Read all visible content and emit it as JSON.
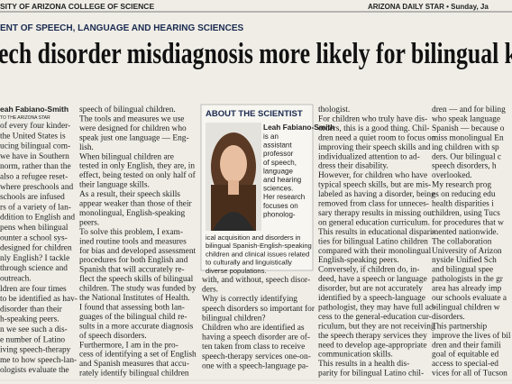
{
  "header": {
    "left": "SITY OF ARIZONA COLLEGE OF SCIENCE",
    "right": "ARIZONA DAILY STAR • Sunday, Ja"
  },
  "section": "ENT OF SPEECH, LANGUAGE AND HEARING SCIENCES",
  "headline": "ech disorder misdiagnosis more likely for bilingual k",
  "byline": {
    "name": "eah Fabiano-Smith",
    "credit": "TO THE ARIZONA STAR"
  },
  "columns": [
    [
      "of every four kinder-",
      "the United States is",
      "ucing bilingual com-",
      "we have in Southern",
      "norm, rather than the",
      "also a refugee reset-",
      "where preschools and",
      "schools are infused",
      "rs of a variety of lan-",
      "ddition to English and",
      "pens when bilingual",
      "ounter a school sys-",
      "designed for children",
      "nly English? I tackle",
      "through science and",
      "outreach.",
      "ldren are four times",
      "to be identified as hav-",
      "disorder than their",
      "h-speaking peers.",
      "n we see such a dis-",
      "e number of Latino",
      "iving speech-therapy",
      "me to how speech-lan-",
      "ologists evaluate the"
    ],
    [
      "speech of bilingual children.",
      "The tools and measures we use",
      "were designed for children who",
      "speak just one language — Eng-",
      "lish.",
      "When bilingual children are",
      "tested in only English, they are, in",
      "effect, being tested on only half of",
      "their language skills.",
      "As a result, their speech skills",
      "appear weaker than those of their",
      "monolingual, English-speaking",
      "peers.",
      "To solve this problem, I exam-",
      "ined routine tools and measures",
      "for bias and developed assessment",
      "procedures for both English and",
      "Spanish that will accurately re-",
      "flect the speech skills of bilingual",
      "children. The study was funded by",
      "the National Institutes of Health.",
      "I found that assessing both lan-",
      "guages of the bilingual child re-",
      "sults in a more accurate diagnosis",
      "of speech disorders.",
      "Furthermore, I am in the pro-",
      "cess of identifying a set of English",
      "and Spanish measures that accu-",
      "rately identify bilingual children"
    ],
    [
      "with, and without, speech disor-",
      "ders.",
      "Why is correctly identifying",
      "speech disorders so important for",
      "bilingual children?",
      "Children who are identified as",
      "having a speech disorder are of-",
      "ten taken from class to receive",
      "speech-therapy services one-on-",
      "one with a speech-language pa-"
    ],
    [
      "thologist.",
      "For children who truly have dis-",
      "orders, this is a good thing. Chil-",
      "dren need a quiet room to focus on",
      "improving their speech skills and",
      "individualized attention to ad-",
      "dress their disability.",
      "However, for children who have",
      "typical speech skills, but are mis-",
      "labeled as having a disorder, being",
      "removed from class for unneces-",
      "sary therapy results in missing out",
      "on general education curriculum.",
      "This results in educational dispari-",
      "ties for bilingual Latino children",
      "compared with their monolingual",
      "English-speaking peers.",
      "Conversely, if children do, in-",
      "deed, have a speech or language",
      "disorder, but are not accurately",
      "identified by a speech-language",
      "pathologist, they may have full ac-",
      "cess to the general-education cur-",
      "riculum, but they are not receiving",
      "the speech therapy services they",
      "need to develop age-appropriate",
      "communication skills.",
      "This results in a health dis-",
      "parity for bilingual Latino chil-"
    ],
    [
      "dren — and for biling",
      "who speak language",
      "Spanish — because o",
      "miss monolingual En",
      "ing children with sp",
      "ders. Our bilingual c",
      "speech disorders, h",
      "overlooked.",
      "My research prog",
      "es on reducing edu",
      "health disparities i",
      "children, using Tucs",
      "for procedures that w",
      "mented nationwide.",
      "The collaboration",
      "University of Arizon",
      "nyside Unified Sch",
      "and bilingual spee",
      "pathologists in the gr",
      "area has already imp",
      "our schools evaluate a",
      "bilingual children w",
      "disorders.",
      "This partnership",
      "improve the lives of bil",
      "dren and their famili",
      "goal of equitable ed",
      "access to special-ed",
      "vices for all of Tucson"
    ]
  ],
  "sidebar": {
    "title": "ABOUT THE SCIENTIST",
    "name": "Leah Fabiano-Smith",
    "bio_right": [
      "is an",
      "assistant",
      "professor",
      "of speech,",
      "language",
      "and hearing",
      "sciences.",
      "Her research",
      "focuses on",
      "phonolog-"
    ],
    "bio_below": [
      "ical acquisition and disorders in",
      "bilingual Spanish-English-speaking",
      "children and clinical issues related",
      "to culturally and linguistically",
      "diverse populations."
    ]
  }
}
